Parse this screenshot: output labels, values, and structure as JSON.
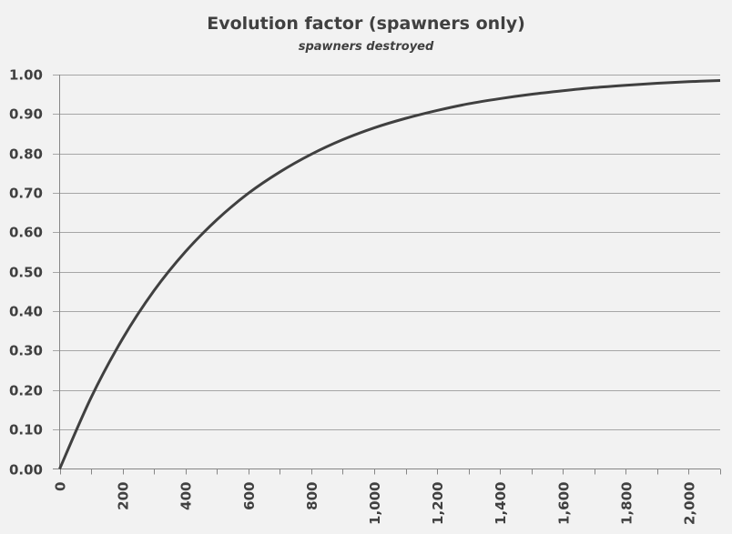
{
  "chart_data": {
    "type": "line",
    "title": "Evolution factor (spawners only)",
    "subtitle": "spawners destroyed",
    "xlabel": "",
    "ylabel": "",
    "xlim": [
      0,
      2100
    ],
    "ylim": [
      0,
      1.0
    ],
    "x_ticks": [
      0,
      200,
      400,
      600,
      800,
      1000,
      1200,
      1400,
      1600,
      1800,
      2000
    ],
    "x_tick_labels": [
      "0",
      "200",
      "400",
      "600",
      "800",
      "1,000",
      "1,200",
      "1,400",
      "1,600",
      "1,800",
      "2,000"
    ],
    "x_minor_tick_step": 100,
    "y_ticks": [
      0,
      0.1,
      0.2,
      0.3,
      0.4,
      0.5,
      0.6,
      0.7,
      0.8,
      0.9,
      1.0
    ],
    "y_tick_labels": [
      "0.00",
      "0.10",
      "0.20",
      "0.30",
      "0.40",
      "0.50",
      "0.60",
      "0.70",
      "0.80",
      "0.90",
      "1.00"
    ],
    "grid": "horizontal",
    "legend": "none",
    "series": [
      {
        "color": "#404040",
        "x": [
          0,
          100,
          200,
          300,
          400,
          500,
          600,
          700,
          800,
          900,
          1000,
          1100,
          1200,
          1300,
          1400,
          1500,
          1600,
          1700,
          1800,
          1900,
          2000,
          2100
        ],
        "y": [
          0,
          0.181,
          0.33,
          0.452,
          0.551,
          0.632,
          0.699,
          0.753,
          0.798,
          0.835,
          0.865,
          0.889,
          0.909,
          0.926,
          0.939,
          0.95,
          0.959,
          0.967,
          0.973,
          0.978,
          0.982,
          0.985
        ]
      }
    ]
  },
  "colors": {
    "background": "#f2f2f2",
    "grid": "#a6a6a6",
    "axis": "#868686",
    "text": "#404040"
  }
}
